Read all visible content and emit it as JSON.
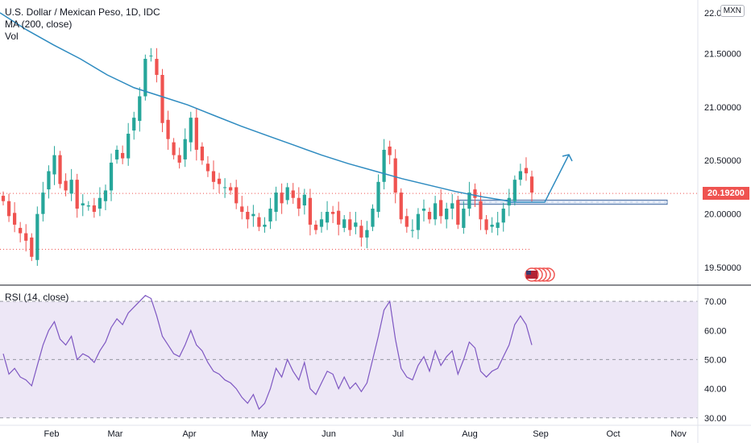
{
  "legend": {
    "symbol": "U.S. Dollar / Mexican Peso, 1D, IDC",
    "ma": "MA (200, close)",
    "vol": "Vol"
  },
  "currency_badge": "MXN",
  "last_price_label": "20.19200",
  "rsi_label": "RSI (14, close)",
  "colors": {
    "up": "#26a69a",
    "down": "#ef5350",
    "ma": "#2e8bc0",
    "rsi_line": "#7e57c2",
    "rsi_band": "#ede7f6",
    "zone": "#b8c9e6",
    "arrow": "#2e8bc0"
  },
  "chart_data": [
    {
      "type": "candlestick",
      "title": "U.S. Dollar / Mexican Peso, 1D, IDC",
      "price_axis_ticks": [
        "21.50000",
        "21.00000",
        "20.50000",
        "20.00000",
        "19.50000"
      ],
      "price_axis_top_label": "22.00000",
      "ylim": [
        19.35,
        22.0
      ],
      "time_axis_ticks": [
        "Feb",
        "Mar",
        "Apr",
        "May",
        "Jun",
        "Jul",
        "Aug",
        "Sep",
        "Oct",
        "Nov"
      ],
      "last_price": 20.192,
      "close": [
        20.12,
        19.98,
        19.9,
        19.82,
        19.75,
        19.6,
        20.0,
        20.2,
        20.4,
        20.55,
        20.28,
        20.22,
        20.32,
        20.05,
        20.1,
        20.08,
        20.02,
        20.15,
        20.22,
        20.48,
        20.6,
        20.52,
        20.75,
        20.9,
        21.1,
        21.45,
        21.48,
        21.3,
        20.85,
        20.7,
        20.55,
        20.48,
        20.7,
        20.9,
        20.6,
        20.5,
        20.4,
        20.3,
        20.28,
        20.25,
        20.22,
        20.1,
        20.02,
        19.95,
        20.0,
        19.88,
        19.9,
        20.05,
        20.2,
        20.1,
        20.25,
        20.15,
        20.05,
        20.18,
        19.9,
        19.85,
        19.95,
        20.02,
        20.0,
        19.9,
        19.95,
        19.85,
        19.92,
        19.78,
        19.85,
        20.05,
        20.3,
        20.6,
        20.55,
        20.2,
        19.95,
        19.88,
        19.85,
        20.0,
        20.05,
        19.95,
        20.1,
        19.98,
        20.05,
        20.1,
        19.9,
        20.05,
        20.2,
        20.15,
        19.95,
        19.85,
        19.9,
        19.92,
        20.05,
        20.15,
        20.32,
        20.4,
        20.38,
        20.2
      ],
      "moving_average_200": [
        21.88,
        21.72,
        21.58,
        21.45,
        21.3,
        21.18,
        21.1,
        21.02,
        20.92,
        20.82,
        20.73,
        20.64,
        20.55,
        20.47,
        20.4,
        20.33,
        20.27,
        20.21,
        20.16,
        20.12
      ],
      "support_zone": [
        20.09,
        20.13
      ],
      "dotted_low": 19.67
    },
    {
      "type": "line",
      "title": "RSI (14, close)",
      "y_ticks": [
        "70.00",
        "60.00",
        "50.00",
        "40.00",
        "30.00"
      ],
      "ylim": [
        28,
        75
      ],
      "bands": [
        70,
        50,
        30
      ],
      "values": [
        52,
        45,
        47,
        44,
        43,
        41,
        48,
        55,
        60,
        63,
        57,
        55,
        58,
        50,
        52,
        51,
        49,
        53,
        56,
        61,
        64,
        62,
        66,
        68,
        70,
        72,
        71,
        65,
        58,
        55,
        52,
        51,
        55,
        60,
        55,
        53,
        49,
        46,
        45,
        43,
        42,
        40,
        37,
        35,
        38,
        33,
        35,
        40,
        47,
        44,
        50,
        46,
        43,
        49,
        40,
        38,
        42,
        46,
        45,
        40,
        44,
        40,
        42,
        39,
        42,
        50,
        58,
        67,
        70,
        57,
        47,
        44,
        43,
        48,
        51,
        46,
        53,
        48,
        51,
        53,
        45,
        50,
        56,
        54,
        46,
        44,
        46,
        47,
        51,
        55,
        62,
        65,
        62,
        55
      ]
    }
  ]
}
